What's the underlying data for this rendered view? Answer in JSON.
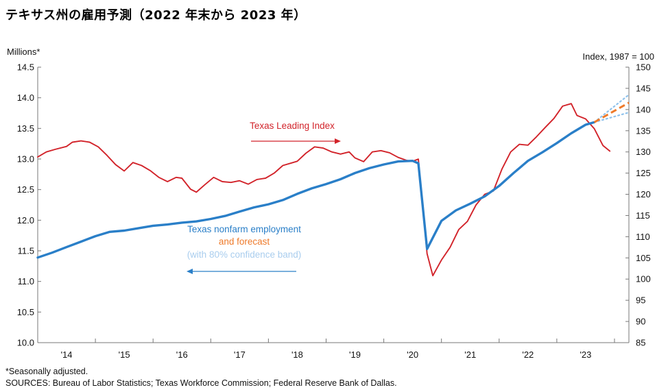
{
  "title": "テキサス州の雇用予測（2022 年末から 2023 年）",
  "footnotes": {
    "seasonal": "*Seasonally adjusted.",
    "sources": "SOURCES: Bureau of Labor Statistics; Texas Workforce Commission; Federal Reserve Bank of Dallas."
  },
  "colors": {
    "employment": "#2a7fc8",
    "forecast": "#ee7a2a",
    "confidence_band": "#8fc2ec",
    "leading_index": "#d2232a",
    "employment_label": "#2a7fc8",
    "forecast_label": "#ee7a2a",
    "band_label": "#a9cdee"
  },
  "chart_data": {
    "type": "line",
    "title": "",
    "ylabel_left": "Millions*",
    "ylabel_right": "Index, 1987 = 100",
    "ylim_left": [
      10.0,
      14.5
    ],
    "ylim_right": [
      85,
      150
    ],
    "xlim": [
      2013.5,
      2023.75
    ],
    "left_ticks": [
      "10.0",
      "10.5",
      "11.0",
      "11.5",
      "12.0",
      "12.5",
      "13.0",
      "13.5",
      "14.0",
      "14.5"
    ],
    "right_ticks": [
      "85",
      "90",
      "95",
      "100",
      "105",
      "110",
      "115",
      "120",
      "125",
      "130",
      "135",
      "140",
      "145",
      "150"
    ],
    "x_ticks": [
      {
        "label": "'14",
        "x": 2014
      },
      {
        "label": "'15",
        "x": 2015
      },
      {
        "label": "'16",
        "x": 2016
      },
      {
        "label": "'17",
        "x": 2017
      },
      {
        "label": "'18",
        "x": 2018
      },
      {
        "label": "'19",
        "x": 2019
      },
      {
        "label": "'20",
        "x": 2020
      },
      {
        "label": "'21",
        "x": 2021
      },
      {
        "label": "'22",
        "x": 2022
      },
      {
        "label": "'23",
        "x": 2023
      }
    ],
    "grid": false,
    "annotations": {
      "leading": "Texas Leading Index",
      "employment": "Texas nonfarm employment",
      "forecast": "and forecast",
      "band": "(with 80% confidence band)"
    },
    "series": [
      {
        "name": "Texas nonfarm employment",
        "axis": "left",
        "points": [
          [
            2013.5,
            11.39
          ],
          [
            2013.75,
            11.47
          ],
          [
            2014.0,
            11.56
          ],
          [
            2014.25,
            11.65
          ],
          [
            2014.5,
            11.74
          ],
          [
            2014.75,
            11.81
          ],
          [
            2015.0,
            11.83
          ],
          [
            2015.25,
            11.87
          ],
          [
            2015.5,
            11.91
          ],
          [
            2015.75,
            11.93
          ],
          [
            2016.0,
            11.96
          ],
          [
            2016.25,
            11.98
          ],
          [
            2016.5,
            12.02
          ],
          [
            2016.75,
            12.07
          ],
          [
            2017.0,
            12.14
          ],
          [
            2017.25,
            12.21
          ],
          [
            2017.5,
            12.26
          ],
          [
            2017.75,
            12.33
          ],
          [
            2018.0,
            12.43
          ],
          [
            2018.25,
            12.52
          ],
          [
            2018.5,
            12.59
          ],
          [
            2018.75,
            12.67
          ],
          [
            2019.0,
            12.77
          ],
          [
            2019.25,
            12.85
          ],
          [
            2019.5,
            12.91
          ],
          [
            2019.75,
            12.96
          ],
          [
            2020.0,
            12.97
          ],
          [
            2020.1,
            12.93
          ],
          [
            2020.25,
            11.53
          ],
          [
            2020.5,
            11.99
          ],
          [
            2020.75,
            12.16
          ],
          [
            2021.0,
            12.27
          ],
          [
            2021.25,
            12.39
          ],
          [
            2021.5,
            12.56
          ],
          [
            2021.75,
            12.77
          ],
          [
            2022.0,
            12.97
          ],
          [
            2022.25,
            13.11
          ],
          [
            2022.5,
            13.26
          ],
          [
            2022.75,
            13.42
          ],
          [
            2023.0,
            13.56
          ],
          [
            2023.15,
            13.6
          ]
        ]
      },
      {
        "name": "forecast",
        "axis": "left",
        "points": [
          [
            2023.15,
            13.6
          ],
          [
            2023.75,
            13.92
          ]
        ]
      },
      {
        "name": "80% confidence band upper",
        "axis": "left",
        "points": [
          [
            2023.15,
            13.6
          ],
          [
            2023.75,
            14.05
          ]
        ]
      },
      {
        "name": "80% confidence band lower",
        "axis": "left",
        "points": [
          [
            2023.15,
            13.6
          ],
          [
            2023.75,
            13.76
          ]
        ]
      },
      {
        "name": "Texas Leading Index",
        "axis": "right",
        "points": [
          [
            2013.5,
            128.8
          ],
          [
            2013.65,
            130.0
          ],
          [
            2013.8,
            130.6
          ],
          [
            2014.0,
            131.3
          ],
          [
            2014.1,
            132.3
          ],
          [
            2014.25,
            132.6
          ],
          [
            2014.4,
            132.3
          ],
          [
            2014.55,
            131.2
          ],
          [
            2014.7,
            129.2
          ],
          [
            2014.85,
            127.0
          ],
          [
            2015.0,
            125.5
          ],
          [
            2015.15,
            127.5
          ],
          [
            2015.3,
            126.8
          ],
          [
            2015.45,
            125.6
          ],
          [
            2015.6,
            124.0
          ],
          [
            2015.75,
            123.0
          ],
          [
            2015.9,
            124.0
          ],
          [
            2016.0,
            123.8
          ],
          [
            2016.15,
            121.2
          ],
          [
            2016.25,
            120.5
          ],
          [
            2016.4,
            122.3
          ],
          [
            2016.55,
            124.0
          ],
          [
            2016.7,
            123.0
          ],
          [
            2016.85,
            122.8
          ],
          [
            2017.0,
            123.2
          ],
          [
            2017.15,
            122.4
          ],
          [
            2017.3,
            123.5
          ],
          [
            2017.45,
            123.8
          ],
          [
            2017.6,
            125.0
          ],
          [
            2017.75,
            126.8
          ],
          [
            2017.9,
            127.4
          ],
          [
            2018.0,
            127.8
          ],
          [
            2018.15,
            129.7
          ],
          [
            2018.3,
            131.2
          ],
          [
            2018.45,
            130.9
          ],
          [
            2018.6,
            130.0
          ],
          [
            2018.75,
            129.5
          ],
          [
            2018.9,
            130.0
          ],
          [
            2019.0,
            128.6
          ],
          [
            2019.15,
            127.7
          ],
          [
            2019.3,
            130.0
          ],
          [
            2019.45,
            130.3
          ],
          [
            2019.6,
            129.8
          ],
          [
            2019.75,
            128.7
          ],
          [
            2019.9,
            128.0
          ],
          [
            2020.0,
            127.8
          ],
          [
            2020.1,
            128.3
          ],
          [
            2020.25,
            106.0
          ],
          [
            2020.35,
            100.8
          ],
          [
            2020.5,
            104.5
          ],
          [
            2020.65,
            107.5
          ],
          [
            2020.8,
            111.7
          ],
          [
            2020.95,
            113.6
          ],
          [
            2021.1,
            117.5
          ],
          [
            2021.25,
            120.0
          ],
          [
            2021.4,
            120.8
          ],
          [
            2021.55,
            126.0
          ],
          [
            2021.7,
            130.0
          ],
          [
            2021.85,
            131.8
          ],
          [
            2022.0,
            131.6
          ],
          [
            2022.15,
            133.6
          ],
          [
            2022.3,
            135.8
          ],
          [
            2022.45,
            137.9
          ],
          [
            2022.6,
            140.8
          ],
          [
            2022.75,
            141.4
          ],
          [
            2022.85,
            138.6
          ],
          [
            2023.0,
            137.8
          ],
          [
            2023.15,
            135.5
          ],
          [
            2023.3,
            131.5
          ],
          [
            2023.42,
            130.2
          ]
        ]
      }
    ]
  }
}
